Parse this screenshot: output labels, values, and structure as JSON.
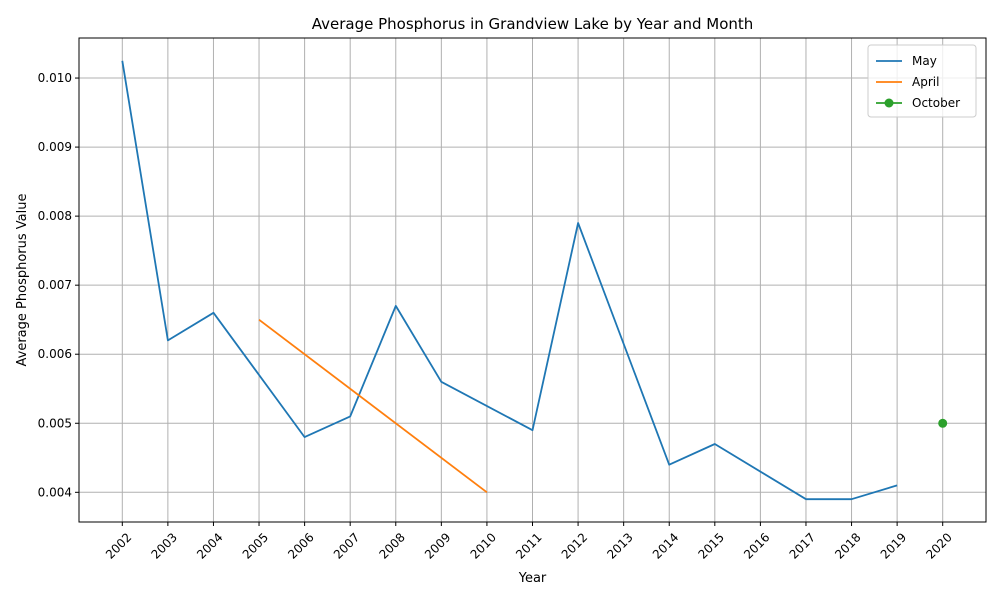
{
  "chart_data": {
    "type": "line",
    "title": "Average Phosphorus in Grandview Lake by Year and Month",
    "xlabel": "Year",
    "ylabel": "Average Phosphorus Value",
    "x_ticks": [
      "2002",
      "2003",
      "2004",
      "2005",
      "2006",
      "2007",
      "2008",
      "2009",
      "2010",
      "2011",
      "2012",
      "2013",
      "2014",
      "2015",
      "2016",
      "2017",
      "2018",
      "2019",
      "2020"
    ],
    "y_ticks": [
      "0.004",
      "0.005",
      "0.006",
      "0.007",
      "0.008",
      "0.009",
      "0.010"
    ],
    "xlim": [
      2001.05,
      2020.95
    ],
    "ylim": [
      0.00357,
      0.01058
    ],
    "grid": true,
    "legend_position": "top-right",
    "series": [
      {
        "name": "May",
        "color": "#1f77b4",
        "marker": false,
        "x": [
          2002,
          2003,
          2004,
          2006,
          2007,
          2008,
          2009,
          2011,
          2012,
          2014,
          2015,
          2017,
          2018,
          2019
        ],
        "y": [
          0.01025,
          0.0062,
          0.0066,
          0.0048,
          0.0051,
          0.0067,
          0.0056,
          0.0049,
          0.0079,
          0.0044,
          0.0047,
          0.0039,
          0.0039,
          0.0041
        ]
      },
      {
        "name": "April",
        "color": "#ff7f0e",
        "marker": false,
        "x": [
          2005,
          2010
        ],
        "y": [
          0.0065,
          0.004
        ]
      },
      {
        "name": "October",
        "color": "#2ca02c",
        "marker": true,
        "x": [
          2020
        ],
        "y": [
          0.005
        ]
      }
    ]
  }
}
